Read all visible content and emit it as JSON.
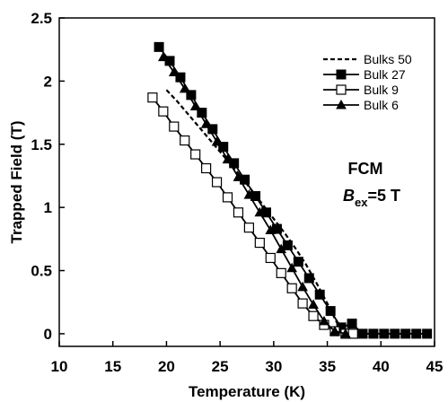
{
  "chart_data": {
    "type": "line",
    "xlabel": "Temperature (K)",
    "ylabel": "Trapped Field (T)",
    "xlim": [
      10,
      45
    ],
    "ylim": [
      -0.1,
      2.5
    ],
    "x_ticks": [
      10,
      15,
      20,
      25,
      30,
      35,
      40,
      45
    ],
    "y_ticks": [
      0,
      0.5,
      1,
      1.5,
      2,
      2.5
    ],
    "x_tick_labels": [
      "10",
      "15",
      "20",
      "25",
      "30",
      "35",
      "40",
      "45"
    ],
    "y_tick_labels": [
      "0",
      "0.5",
      "1",
      "1.5",
      "2",
      "2.5"
    ],
    "grid": false,
    "legend_position": "top-right",
    "series": [
      {
        "name": "Bulks 50",
        "style": "dashed",
        "marker": "none",
        "color": "#000000",
        "x": [
          20,
          21,
          22,
          23,
          24,
          25,
          26,
          27,
          28,
          29,
          30,
          31,
          32,
          33,
          34,
          35,
          36,
          37
        ],
        "y": [
          1.93,
          1.84,
          1.74,
          1.64,
          1.54,
          1.44,
          1.34,
          1.24,
          1.13,
          1.02,
          0.91,
          0.8,
          0.68,
          0.55,
          0.4,
          0.24,
          0.07,
          0.0
        ]
      },
      {
        "name": "Bulk 27",
        "style": "solid",
        "marker": "filled-square",
        "color": "#000000",
        "x": [
          19.3,
          20.3,
          21.3,
          22.3,
          23.3,
          24.3,
          25.3,
          26.3,
          27.3,
          28.3,
          29.3,
          30.3,
          31.3,
          32.3,
          33.3,
          34.3,
          35.3,
          36.3,
          37.3,
          38.3,
          39.3,
          40.3,
          41.3,
          42.3,
          43.3,
          44.3
        ],
        "y": [
          2.27,
          2.16,
          2.03,
          1.89,
          1.75,
          1.62,
          1.48,
          1.35,
          1.22,
          1.09,
          0.96,
          0.83,
          0.7,
          0.57,
          0.44,
          0.31,
          0.18,
          0.05,
          0.08,
          0.0,
          0.0,
          0.0,
          0.0,
          0.0,
          0.0,
          0.0
        ]
      },
      {
        "name": "Bulk 9",
        "style": "solid",
        "marker": "open-square",
        "color": "#000000",
        "x": [
          18.7,
          19.7,
          20.7,
          21.7,
          22.7,
          23.7,
          24.7,
          25.7,
          26.7,
          27.7,
          28.7,
          29.7,
          30.7,
          31.7,
          32.7,
          33.7,
          34.7,
          35.7,
          36.7,
          37.4
        ],
        "y": [
          1.87,
          1.76,
          1.64,
          1.53,
          1.42,
          1.31,
          1.2,
          1.08,
          0.96,
          0.84,
          0.72,
          0.6,
          0.48,
          0.36,
          0.24,
          0.14,
          0.07,
          0.02,
          0.0,
          0.0
        ]
      },
      {
        "name": "Bulk 6",
        "style": "solid",
        "marker": "filled-triangle",
        "color": "#000000",
        "x": [
          19.7,
          20.7,
          21.7,
          22.7,
          23.7,
          24.7,
          25.7,
          26.7,
          27.7,
          28.7,
          29.7,
          30.7,
          31.7,
          32.7,
          33.7,
          34.7,
          35.7,
          36.7
        ],
        "y": [
          2.19,
          2.07,
          1.94,
          1.8,
          1.66,
          1.52,
          1.38,
          1.24,
          1.1,
          0.96,
          0.82,
          0.67,
          0.52,
          0.37,
          0.23,
          0.1,
          0.02,
          0.0
        ]
      }
    ],
    "annotations": {
      "method": "FCM",
      "field_symbol": "B",
      "field_subscript": "ex",
      "field_value": "=5 T"
    }
  }
}
